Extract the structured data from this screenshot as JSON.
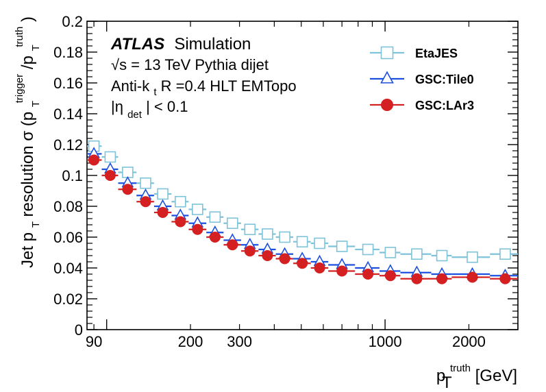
{
  "chart_data": {
    "type": "scatter",
    "xlabel": {
      "base": "p",
      "sub": "T",
      "sup": "truth",
      "unit": " [GeV]"
    },
    "ylabel": {
      "prefix": "Jet p",
      "sub1": "T",
      "middle": " resolution σ (p",
      "sub2": "T",
      "sup2": "trigger",
      "slash": "/p",
      "sub3": "T",
      "sup3": "truth",
      "close": ")"
    },
    "x_scale": "log",
    "xlim": [
      85,
      3000
    ],
    "ylim": [
      0,
      0.2
    ],
    "x_ticks": [
      "90",
      "200",
      "300",
      "1000",
      "2000"
    ],
    "y_ticks": [
      "0",
      "0.02",
      "0.04",
      "0.06",
      "0.08",
      "0.1",
      "0.12",
      "0.14",
      "0.16",
      "0.18",
      "0.2"
    ],
    "annotations": {
      "experiment": "ATLAS",
      "label": "Simulation",
      "line2": "√s = 13 TeV Pythia dijet",
      "line3_pre": "Anti-k",
      "line3_sub": "t",
      "line3_post": " R =0.4 HLT EMTopo",
      "line4_pre": "|η",
      "line4_sub": "det",
      "line4_post": "| < 0.1"
    },
    "legend_position": "top-right",
    "series": [
      {
        "name": "EtaJES",
        "marker": "open-square",
        "color": "#7ec3d9",
        "x": [
          90,
          103,
          119,
          138,
          159,
          184,
          212,
          245,
          283,
          327,
          378,
          436,
          504,
          582,
          700,
          868,
          1045,
          1300,
          1600,
          2058,
          2700
        ],
        "x_lo": [
          85,
          96,
          110,
          128,
          148,
          171,
          197,
          228,
          263,
          304,
          351,
          405,
          468,
          541,
          625,
          780,
          955,
          1135,
          1465,
          1735,
          2380
        ],
        "x_hi": [
          96,
          110,
          128,
          148,
          171,
          197,
          228,
          263,
          304,
          351,
          405,
          468,
          541,
          625,
          780,
          955,
          1135,
          1465,
          1735,
          2380,
          3000
        ],
        "y": [
          0.119,
          0.112,
          0.102,
          0.095,
          0.088,
          0.083,
          0.078,
          0.073,
          0.069,
          0.065,
          0.062,
          0.06,
          0.057,
          0.056,
          0.054,
          0.052,
          0.05,
          0.049,
          0.048,
          0.047,
          0.049
        ]
      },
      {
        "name": "GSC:Tile0",
        "marker": "open-triangle",
        "color": "#1c4fdf",
        "x": [
          90,
          103,
          119,
          138,
          159,
          184,
          212,
          245,
          283,
          327,
          378,
          436,
          504,
          582,
          700,
          868,
          1045,
          1300,
          1600,
          2058,
          2700
        ],
        "x_lo": [
          85,
          96,
          110,
          128,
          148,
          171,
          197,
          228,
          263,
          304,
          351,
          405,
          468,
          541,
          625,
          780,
          955,
          1135,
          1465,
          1735,
          2380
        ],
        "x_hi": [
          96,
          110,
          128,
          148,
          171,
          197,
          228,
          263,
          304,
          351,
          405,
          468,
          541,
          625,
          780,
          955,
          1135,
          1465,
          1735,
          2380,
          3000
        ],
        "y": [
          0.114,
          0.104,
          0.095,
          0.087,
          0.08,
          0.074,
          0.069,
          0.063,
          0.058,
          0.055,
          0.052,
          0.049,
          0.046,
          0.044,
          0.042,
          0.04,
          0.038,
          0.037,
          0.036,
          0.036,
          0.035
        ]
      },
      {
        "name": "GSC:LAr3",
        "marker": "filled-circle",
        "color": "#d42020",
        "x": [
          90,
          103,
          119,
          138,
          159,
          184,
          212,
          245,
          283,
          327,
          378,
          436,
          504,
          582,
          700,
          868,
          1045,
          1300,
          1600,
          2058,
          2700
        ],
        "x_lo": [
          85,
          96,
          110,
          128,
          148,
          171,
          197,
          228,
          263,
          304,
          351,
          405,
          468,
          541,
          625,
          780,
          955,
          1135,
          1465,
          1735,
          2380
        ],
        "x_hi": [
          96,
          110,
          128,
          148,
          171,
          197,
          228,
          263,
          304,
          351,
          405,
          468,
          541,
          625,
          780,
          955,
          1135,
          1465,
          1735,
          2380,
          3000
        ],
        "y": [
          0.11,
          0.1,
          0.091,
          0.083,
          0.076,
          0.07,
          0.065,
          0.06,
          0.055,
          0.051,
          0.048,
          0.046,
          0.043,
          0.04,
          0.038,
          0.036,
          0.035,
          0.033,
          0.033,
          0.034,
          0.033
        ]
      }
    ]
  }
}
